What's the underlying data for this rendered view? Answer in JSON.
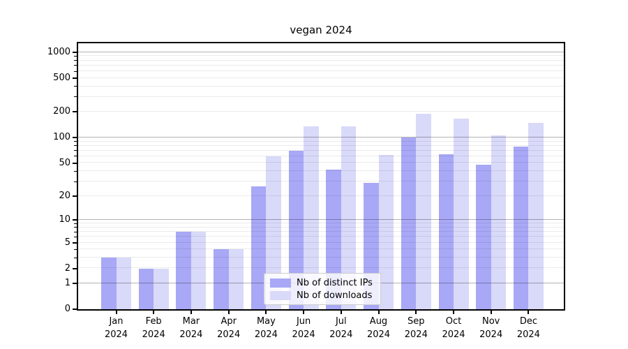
{
  "window": {
    "background": "#ffffff"
  },
  "chart_data": {
    "type": "bar",
    "title": "vegan 2024",
    "categories": [
      "Jan",
      "Feb",
      "Mar",
      "Apr",
      "May",
      "Jun",
      "Jul",
      "Aug",
      "Sep",
      "Oct",
      "Nov",
      "Dec"
    ],
    "x_tick_year": "2024",
    "series": [
      {
        "name": "Nb of distinct IPs",
        "color": "#a8a8f6",
        "values": [
          3,
          2,
          7,
          4,
          26,
          70,
          42,
          29,
          100,
          64,
          48,
          78
        ]
      },
      {
        "name": "Nb of downloads",
        "color": "#d9d9f9",
        "values": [
          3,
          2,
          7,
          4,
          60,
          135,
          135,
          62,
          190,
          168,
          107,
          150
        ]
      }
    ],
    "xlabel": "",
    "ylabel": "",
    "y_scale": "log1p",
    "ylim": [
      0,
      1272
    ],
    "y_tick_labels": [
      1000,
      500,
      200,
      100,
      50,
      20,
      10,
      5,
      2,
      1,
      0
    ],
    "y_major_grid": [
      1,
      10,
      100,
      1000
    ],
    "y_minor_grid": [
      2,
      3,
      4,
      5,
      6,
      7,
      8,
      9,
      20,
      30,
      40,
      50,
      60,
      70,
      80,
      90,
      200,
      300,
      400,
      500,
      600,
      700,
      800,
      900
    ],
    "grid": true,
    "legend_position": "lower center",
    "colors": {
      "major_grid": "#b0b0b0",
      "minor_grid": "#e8e8e8",
      "spine": "#000000",
      "text": "#000000"
    }
  }
}
